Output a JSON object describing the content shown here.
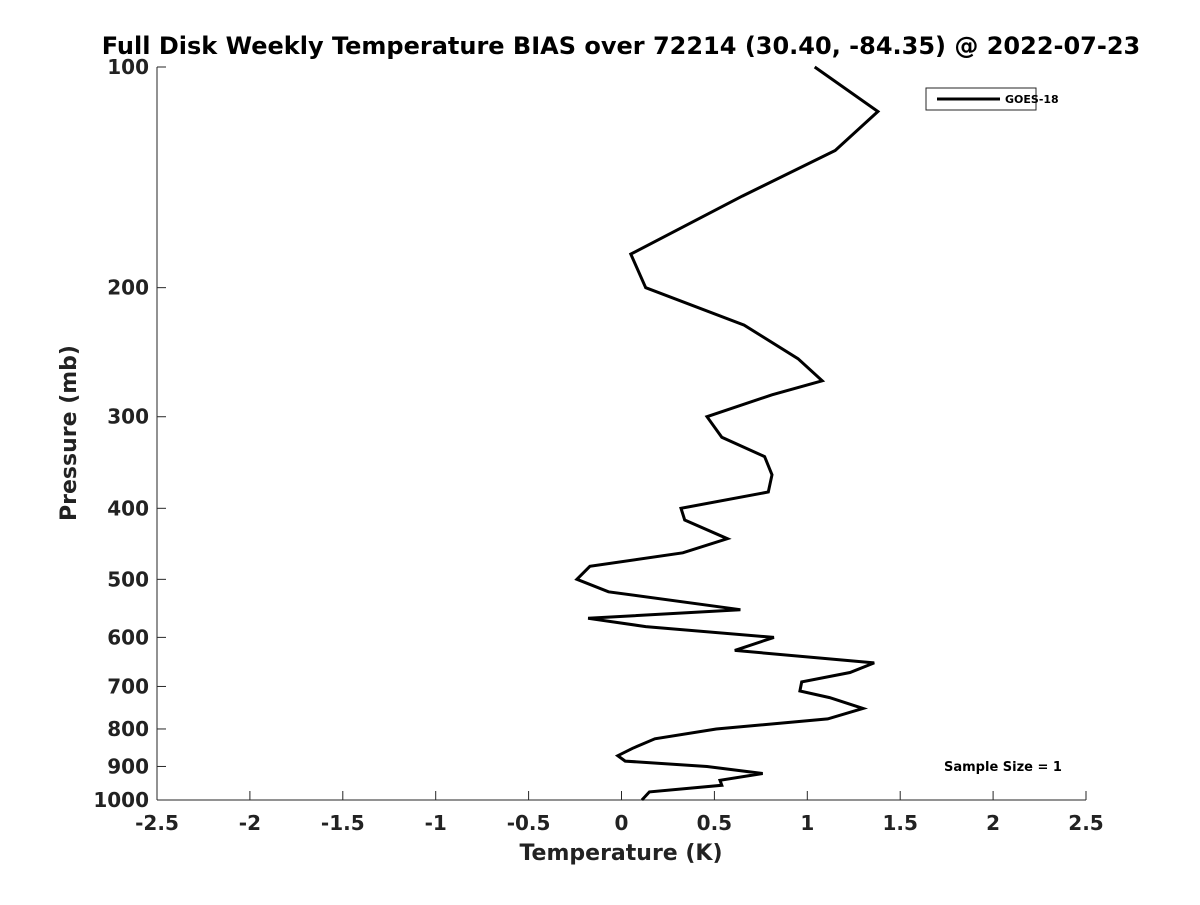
{
  "chart_data": {
    "type": "line",
    "title": "Full Disk Weekly Temperature BIAS over 72214 (30.40, -84.35) @ 2022-07-23",
    "xlabel": "Temperature (K)",
    "ylabel": "Pressure (mb)",
    "xlim": [
      -2.5,
      2.5
    ],
    "ylim": [
      1000,
      100
    ],
    "yscale": "log",
    "y_reversed": true,
    "grid": false,
    "legend_position": "top-right",
    "x_ticks": [
      -2.5,
      -2,
      -1.5,
      -1,
      -0.5,
      0,
      0.5,
      1,
      1.5,
      2,
      2.5
    ],
    "x_tick_labels": [
      "-2.5",
      "-2",
      "-1.5",
      "-1",
      "-0.5",
      "0",
      "0.5",
      "1",
      "1.5",
      "2",
      "2.5"
    ],
    "y_ticks": [
      100,
      200,
      300,
      400,
      500,
      600,
      700,
      800,
      900,
      1000
    ],
    "y_tick_labels": [
      "100",
      "200",
      "300",
      "400",
      "500",
      "600",
      "700",
      "800",
      "900",
      "1000"
    ],
    "series": [
      {
        "name": "GOES-18",
        "color": "#000000",
        "points": [
          {
            "x": 1.04,
            "y": 100
          },
          {
            "x": 1.38,
            "y": 115
          },
          {
            "x": 1.15,
            "y": 130
          },
          {
            "x": 0.65,
            "y": 150
          },
          {
            "x": 0.05,
            "y": 180
          },
          {
            "x": 0.13,
            "y": 200
          },
          {
            "x": 0.66,
            "y": 225
          },
          {
            "x": 0.95,
            "y": 250
          },
          {
            "x": 1.08,
            "y": 268
          },
          {
            "x": 0.81,
            "y": 280
          },
          {
            "x": 0.46,
            "y": 300
          },
          {
            "x": 0.54,
            "y": 320
          },
          {
            "x": 0.77,
            "y": 340
          },
          {
            "x": 0.81,
            "y": 360
          },
          {
            "x": 0.79,
            "y": 380
          },
          {
            "x": 0.32,
            "y": 400
          },
          {
            "x": 0.34,
            "y": 415
          },
          {
            "x": 0.57,
            "y": 440
          },
          {
            "x": 0.33,
            "y": 460
          },
          {
            "x": -0.17,
            "y": 480
          },
          {
            "x": -0.24,
            "y": 500
          },
          {
            "x": -0.07,
            "y": 520
          },
          {
            "x": 0.64,
            "y": 550
          },
          {
            "x": -0.18,
            "y": 565
          },
          {
            "x": 0.13,
            "y": 580
          },
          {
            "x": 0.82,
            "y": 600
          },
          {
            "x": 0.61,
            "y": 625
          },
          {
            "x": 1.36,
            "y": 650
          },
          {
            "x": 1.23,
            "y": 670
          },
          {
            "x": 0.97,
            "y": 690
          },
          {
            "x": 0.96,
            "y": 710
          },
          {
            "x": 1.12,
            "y": 725
          },
          {
            "x": 1.3,
            "y": 750
          },
          {
            "x": 1.11,
            "y": 775
          },
          {
            "x": 0.51,
            "y": 800
          },
          {
            "x": 0.18,
            "y": 825
          },
          {
            "x": 0.06,
            "y": 850
          },
          {
            "x": -0.02,
            "y": 870
          },
          {
            "x": 0.02,
            "y": 885
          },
          {
            "x": 0.46,
            "y": 900
          },
          {
            "x": 0.76,
            "y": 920
          },
          {
            "x": 0.53,
            "y": 940
          },
          {
            "x": 0.54,
            "y": 955
          },
          {
            "x": 0.15,
            "y": 975
          },
          {
            "x": 0.11,
            "y": 1000
          }
        ]
      }
    ],
    "legend": {
      "entries": [
        "GOES-18"
      ]
    },
    "annotations": [
      {
        "text": "Sample Size = 1"
      }
    ]
  }
}
